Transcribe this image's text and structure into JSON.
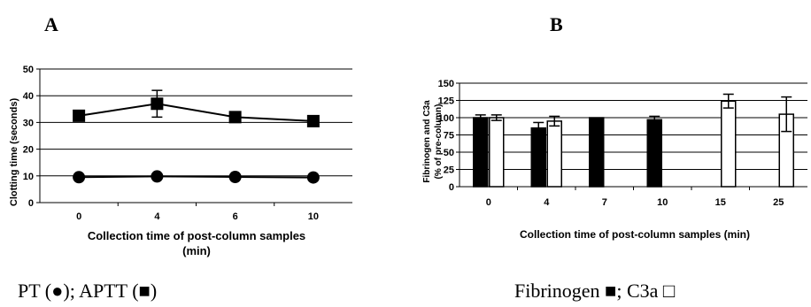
{
  "chart_data": [
    {
      "panel": "A",
      "type": "line",
      "categories": [
        "0",
        "4",
        "6",
        "10"
      ],
      "series": [
        {
          "name": "APTT",
          "marker": "square",
          "values": [
            32.5,
            37,
            32,
            30.5
          ],
          "error": [
            0,
            5,
            0,
            0
          ]
        },
        {
          "name": "PT",
          "marker": "circle",
          "values": [
            9.5,
            9.8,
            9.6,
            9.4
          ],
          "error": [
            0,
            0,
            0,
            0
          ]
        }
      ],
      "xlabel": [
        "Collection time of post-column samples",
        "(min)"
      ],
      "ylabel": "Clotting time (seconds)",
      "ylim": [
        0,
        50
      ],
      "yticks": [
        "0",
        "10",
        "20",
        "30",
        "40",
        "50"
      ],
      "grid": true,
      "legend": "PT (●); APTT (■)"
    },
    {
      "panel": "B",
      "type": "bar",
      "categories": [
        "0",
        "4",
        "7",
        "10",
        "15",
        "25"
      ],
      "series": [
        {
          "name": "Fibrinogen",
          "color": "#000000",
          "values": [
            100,
            85,
            100,
            97,
            null,
            null
          ],
          "error": [
            4,
            8,
            0,
            5,
            0,
            0
          ]
        },
        {
          "name": "C3a",
          "color": "#ffffff",
          "values": [
            100,
            95,
            null,
            null,
            124,
            105
          ],
          "error": [
            4,
            7,
            0,
            0,
            10,
            25
          ]
        }
      ],
      "xlabel": "Collection time of post-column samples (min)",
      "ylabel": [
        "Fibrinogen and C3a",
        "(% of pre-column)"
      ],
      "ylim": [
        0,
        150
      ],
      "yticks": [
        "0",
        "25",
        "50",
        "75",
        "100",
        "125",
        "150"
      ],
      "grid": true,
      "legend": "Fibrinogen ■; C3a □"
    }
  ]
}
